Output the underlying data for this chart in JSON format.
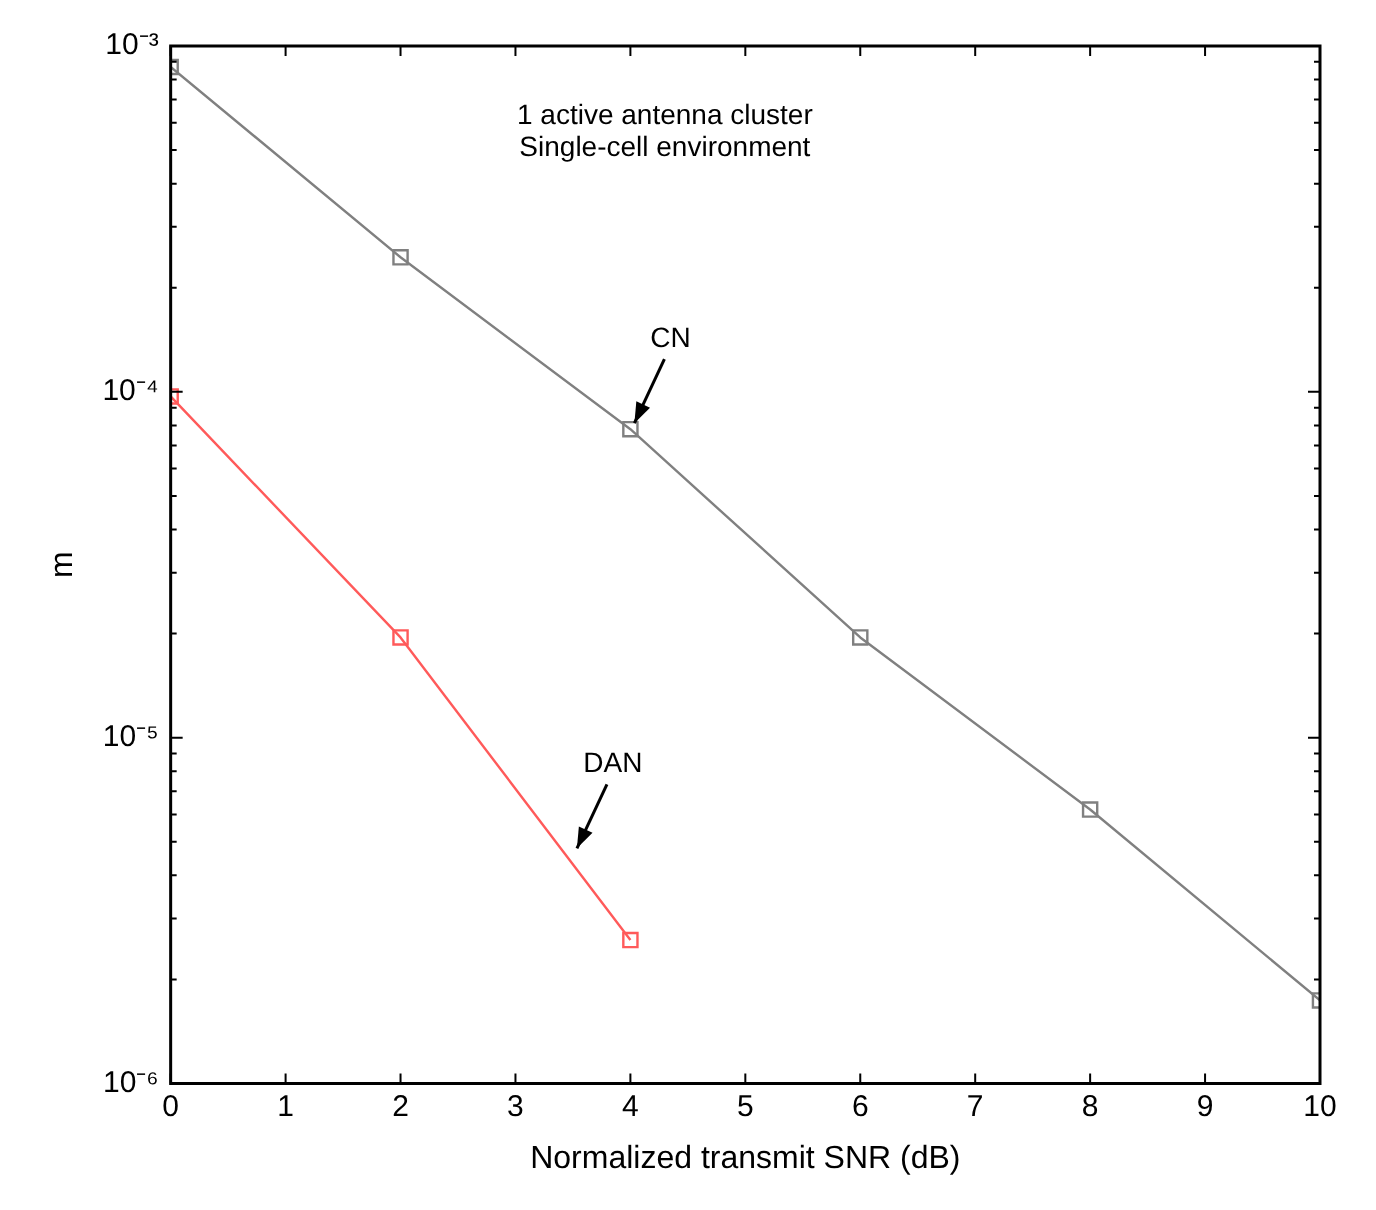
{
  "chart_data": {
    "type": "line",
    "xlabel": "Normalized transmit SNR (dB)",
    "ylabel": "m",
    "log": "y",
    "grid": false,
    "legend": false,
    "marker": "square",
    "line_style": "solid",
    "xlim": [
      0,
      10
    ],
    "xticks": [
      0,
      1,
      2,
      3,
      4,
      5,
      6,
      7,
      8,
      9,
      10
    ],
    "ylim": [
      1e-06,
      0.001
    ],
    "yticks": [
      {
        "value": 1e-06,
        "label": "10⁻⁶"
      },
      {
        "value": 2e-06,
        "label": null
      },
      {
        "value": 3e-06,
        "label": null
      },
      {
        "value": 4e-06,
        "label": null
      },
      {
        "value": 5e-06,
        "label": null
      },
      {
        "value": 6e-06,
        "label": null
      },
      {
        "value": 7e-06,
        "label": null
      },
      {
        "value": 8e-06,
        "label": null
      },
      {
        "value": 9e-06,
        "label": null
      },
      {
        "value": 1e-05,
        "label": "10⁻⁵"
      },
      {
        "value": 2e-05,
        "label": null
      },
      {
        "value": 3e-05,
        "label": null
      },
      {
        "value": 4e-05,
        "label": null
      },
      {
        "value": 5e-05,
        "label": null
      },
      {
        "value": 6e-05,
        "label": null
      },
      {
        "value": 7e-05,
        "label": null
      },
      {
        "value": 8e-05,
        "label": null
      },
      {
        "value": 9e-05,
        "label": null
      },
      {
        "value": 0.0001,
        "label": "10⁻⁴"
      },
      {
        "value": 0.0002,
        "label": null
      },
      {
        "value": 0.0003,
        "label": null
      },
      {
        "value": 0.0004,
        "label": null
      },
      {
        "value": 0.0005,
        "label": null
      },
      {
        "value": 0.0006,
        "label": null
      },
      {
        "value": 0.0007,
        "label": null
      },
      {
        "value": 0.0008,
        "label": null
      },
      {
        "value": 0.0009,
        "label": null
      },
      {
        "value": 0.001,
        "label": "10⁻³"
      }
    ],
    "series": [
      {
        "color": "#808080",
        "x": [
          0,
          2,
          4,
          6,
          8,
          10
        ],
        "values": [
          0.00087,
          0.000245,
          7.8e-05,
          1.95e-05,
          6.2e-06,
          1.74e-06
        ]
      },
      {
        "color": "#ff5a5a",
        "x": [
          0,
          2,
          4
        ],
        "values": [
          9.7e-05,
          1.95e-05,
          2.6e-06
        ]
      }
    ],
    "annotations": [
      "1 active antenna cluster",
      "Single-cell environment",
      {
        "text": "CN",
        "x": 4,
        "y": 7.8e-05
      },
      {
        "text": "DAN",
        "x": 3.5,
        "y": 4.6e-06
      }
    ]
  }
}
